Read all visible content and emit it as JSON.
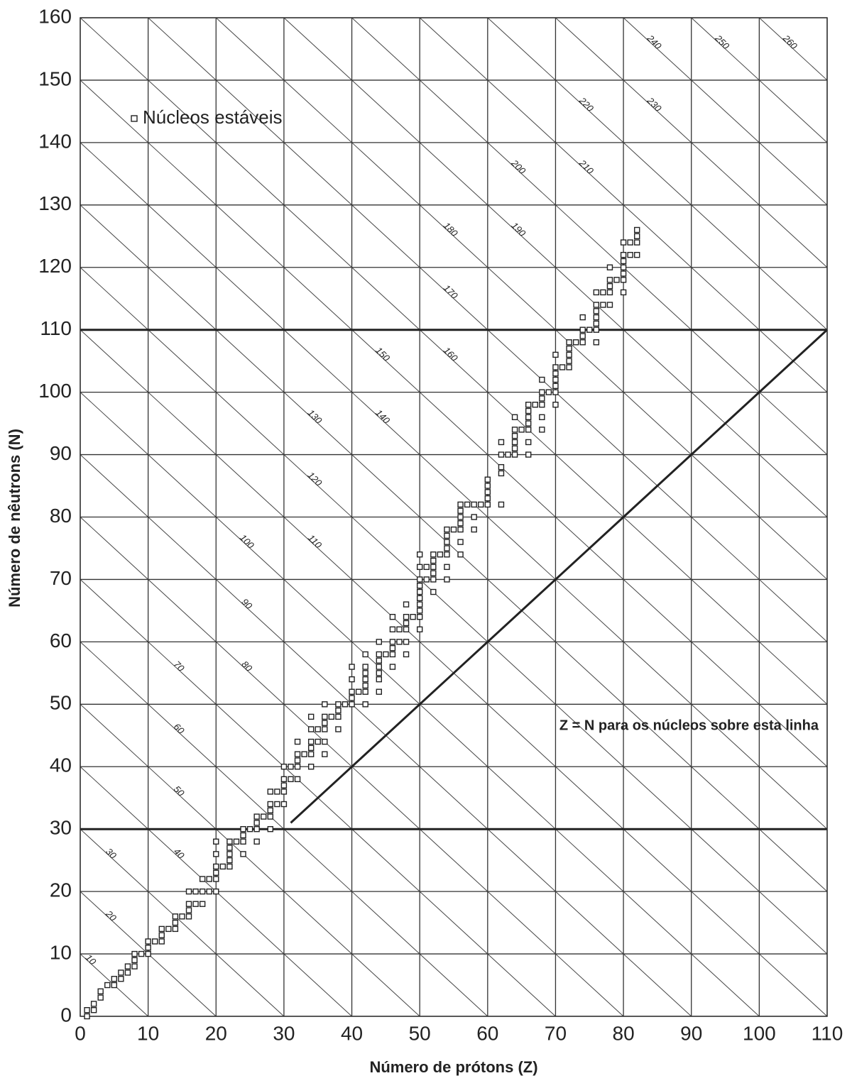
{
  "chart_data": {
    "type": "scatter",
    "xlabel": "Número de prótons (Z)",
    "ylabel": "Número de nêutrons (N)",
    "annotation": "Z = N para os núcleos sobre esta linha",
    "xlim": [
      0,
      110
    ],
    "ylim": [
      0,
      160
    ],
    "xticks": [
      0,
      10,
      20,
      30,
      40,
      50,
      60,
      70,
      80,
      90,
      100,
      110
    ],
    "yticks": [
      0,
      10,
      20,
      30,
      40,
      50,
      60,
      70,
      80,
      90,
      100,
      110,
      120,
      130,
      140,
      150,
      160
    ],
    "grid": true,
    "legend": "upper-left",
    "isobars": [
      10,
      20,
      30,
      40,
      50,
      60,
      70,
      80,
      90,
      100,
      110,
      120,
      130,
      140,
      150,
      160,
      170,
      180,
      190,
      200,
      210,
      220,
      230,
      240,
      250,
      260
    ],
    "hlines": [
      30,
      110
    ],
    "zn_line": {
      "x": [
        31,
        110
      ],
      "values": [
        31,
        110
      ]
    },
    "series": [
      {
        "name": "Núcleos estáveis",
        "color": "#222222",
        "x": [
          1,
          1,
          2,
          2,
          3,
          3,
          4,
          5,
          5,
          6,
          6,
          7,
          7,
          8,
          8,
          8,
          9,
          10,
          10,
          10,
          11,
          12,
          12,
          12,
          13,
          14,
          14,
          14,
          15,
          16,
          16,
          16,
          16,
          17,
          17,
          18,
          18,
          18,
          19,
          19,
          20,
          20,
          20,
          20,
          20,
          20,
          21,
          22,
          22,
          22,
          22,
          22,
          23,
          24,
          24,
          24,
          24,
          25,
          26,
          26,
          26,
          26,
          27,
          28,
          28,
          28,
          28,
          28,
          29,
          29,
          30,
          30,
          30,
          30,
          30,
          31,
          31,
          32,
          32,
          32,
          32,
          32,
          33,
          34,
          34,
          34,
          34,
          34,
          34,
          35,
          35,
          36,
          36,
          36,
          36,
          36,
          36,
          37,
          38,
          38,
          38,
          38,
          39,
          40,
          40,
          40,
          40,
          40,
          41,
          42,
          42,
          42,
          42,
          42,
          42,
          42,
          44,
          44,
          44,
          44,
          44,
          44,
          44,
          45,
          46,
          46,
          46,
          46,
          46,
          46,
          47,
          47,
          48,
          48,
          48,
          48,
          48,
          48,
          49,
          50,
          50,
          50,
          50,
          50,
          50,
          50,
          50,
          50,
          50,
          51,
          51,
          52,
          52,
          52,
          52,
          52,
          52,
          53,
          54,
          54,
          54,
          54,
          54,
          54,
          54,
          55,
          56,
          56,
          56,
          56,
          56,
          56,
          56,
          57,
          58,
          58,
          58,
          59,
          60,
          60,
          60,
          60,
          60,
          62,
          62,
          62,
          62,
          62,
          63,
          64,
          64,
          64,
          64,
          64,
          64,
          65,
          66,
          66,
          66,
          66,
          66,
          66,
          66,
          67,
          68,
          68,
          68,
          68,
          68,
          68,
          69,
          70,
          70,
          70,
          70,
          70,
          70,
          70,
          71,
          72,
          72,
          72,
          72,
          72,
          73,
          74,
          74,
          74,
          74,
          75,
          76,
          76,
          76,
          76,
          76,
          76,
          76,
          77,
          77,
          78,
          78,
          78,
          78,
          78,
          79,
          80,
          80,
          80,
          80,
          80,
          80,
          80,
          81,
          81,
          82,
          82,
          82,
          82
        ],
        "values": [
          0,
          1,
          1,
          2,
          3,
          4,
          5,
          5,
          6,
          6,
          7,
          7,
          8,
          8,
          9,
          10,
          10,
          10,
          11,
          12,
          12,
          12,
          13,
          14,
          14,
          14,
          15,
          16,
          16,
          16,
          17,
          18,
          20,
          18,
          20,
          18,
          20,
          22,
          20,
          22,
          20,
          22,
          23,
          24,
          26,
          28,
          24,
          24,
          25,
          26,
          27,
          28,
          28,
          26,
          28,
          29,
          30,
          30,
          28,
          30,
          31,
          32,
          32,
          30,
          32,
          33,
          34,
          36,
          34,
          36,
          34,
          36,
          37,
          38,
          40,
          38,
          40,
          38,
          40,
          41,
          42,
          44,
          42,
          40,
          42,
          43,
          44,
          46,
          48,
          44,
          46,
          42,
          44,
          46,
          47,
          48,
          50,
          48,
          46,
          48,
          49,
          50,
          50,
          50,
          51,
          52,
          54,
          56,
          52,
          50,
          52,
          53,
          54,
          55,
          56,
          58,
          52,
          54,
          55,
          56,
          57,
          58,
          60,
          58,
          56,
          58,
          59,
          60,
          62,
          64,
          60,
          62,
          58,
          60,
          62,
          63,
          64,
          66,
          64,
          62,
          64,
          65,
          66,
          67,
          68,
          69,
          70,
          72,
          74,
          70,
          72,
          68,
          70,
          71,
          72,
          73,
          74,
          74,
          70,
          72,
          74,
          75,
          76,
          77,
          78,
          78,
          74,
          76,
          78,
          79,
          80,
          81,
          82,
          82,
          78,
          80,
          82,
          82,
          82,
          83,
          84,
          85,
          86,
          82,
          87,
          88,
          90,
          92,
          90,
          90,
          91,
          92,
          93,
          94,
          96,
          94,
          90,
          92,
          94,
          95,
          96,
          97,
          98,
          98,
          94,
          96,
          98,
          99,
          100,
          102,
          100,
          98,
          100,
          101,
          102,
          103,
          104,
          106,
          104,
          104,
          105,
          106,
          107,
          108,
          108,
          108,
          109,
          110,
          112,
          110,
          108,
          110,
          111,
          112,
          113,
          114,
          116,
          114,
          116,
          114,
          116,
          117,
          118,
          120,
          118,
          116,
          118,
          119,
          120,
          121,
          122,
          124,
          122,
          124,
          122,
          124,
          125,
          126
        ]
      }
    ]
  }
}
